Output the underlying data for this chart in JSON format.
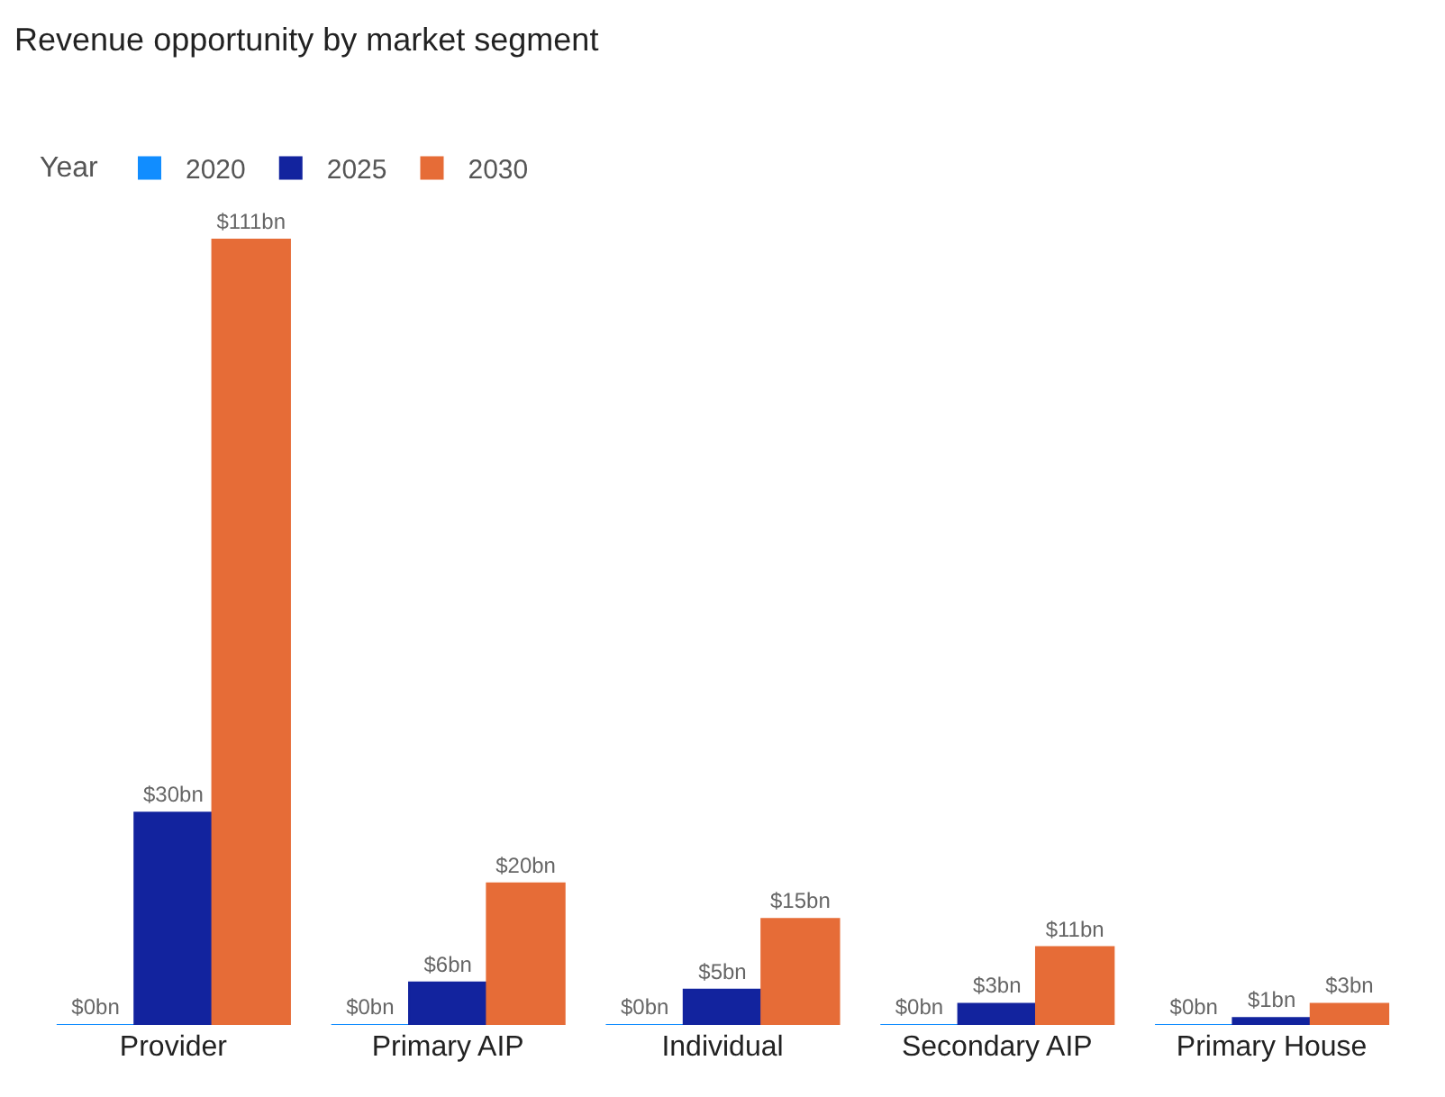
{
  "chart_data": {
    "type": "bar",
    "title": "Revenue opportunity by market segment",
    "legend_title": "Year",
    "legend": "top left",
    "categories": [
      "Provider",
      "Primary AIP",
      "Individual",
      "Secondary AIP",
      "Primary House"
    ],
    "series": [
      {
        "name": "2020",
        "color": "#118dff",
        "values": [
          0,
          0,
          0,
          0,
          0
        ],
        "value_labels": [
          "$0bn",
          "$0bn",
          "$0bn",
          "$0bn",
          "$0bn"
        ]
      },
      {
        "name": "2025",
        "color": "#12239e",
        "values": [
          30,
          6,
          5,
          3,
          1
        ],
        "value_labels": [
          "$30bn",
          "$6bn",
          "$5bn",
          "$3bn",
          "$1bn"
        ]
      },
      {
        "name": "2030",
        "color": "#e66c37",
        "values": [
          111,
          20,
          15,
          11,
          3
        ],
        "value_labels": [
          "$111bn",
          "$20bn",
          "$15bn",
          "$11bn",
          "$3bn"
        ]
      }
    ]
  }
}
